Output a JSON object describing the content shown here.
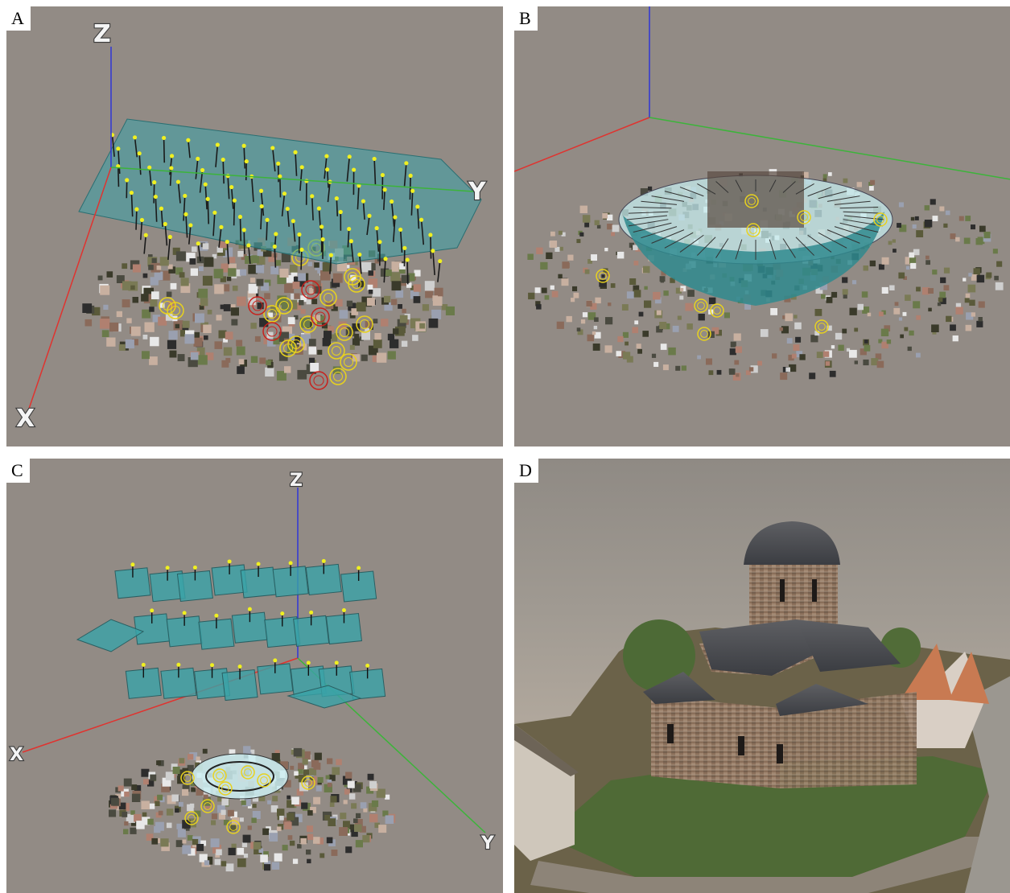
{
  "panels": [
    {
      "id": "a",
      "label": "A",
      "axes": {
        "x": "X",
        "y": "Y",
        "z": "Z"
      }
    },
    {
      "id": "b",
      "label": "B"
    },
    {
      "id": "c",
      "label": "C",
      "axes": {
        "x": "X",
        "y": "Y",
        "z": "Z"
      }
    },
    {
      "id": "d",
      "label": "D"
    }
  ],
  "colors": {
    "background": "#928b85",
    "x_axis": "#e0332f",
    "y_axis": "#3cb43a",
    "z_axis": "#2f36d6",
    "camera_plane": "#3aa3a8",
    "camera_marker": "#f0f020",
    "gcp_marker": "#e8d21e",
    "gcp_error_marker": "#c8201c"
  }
}
